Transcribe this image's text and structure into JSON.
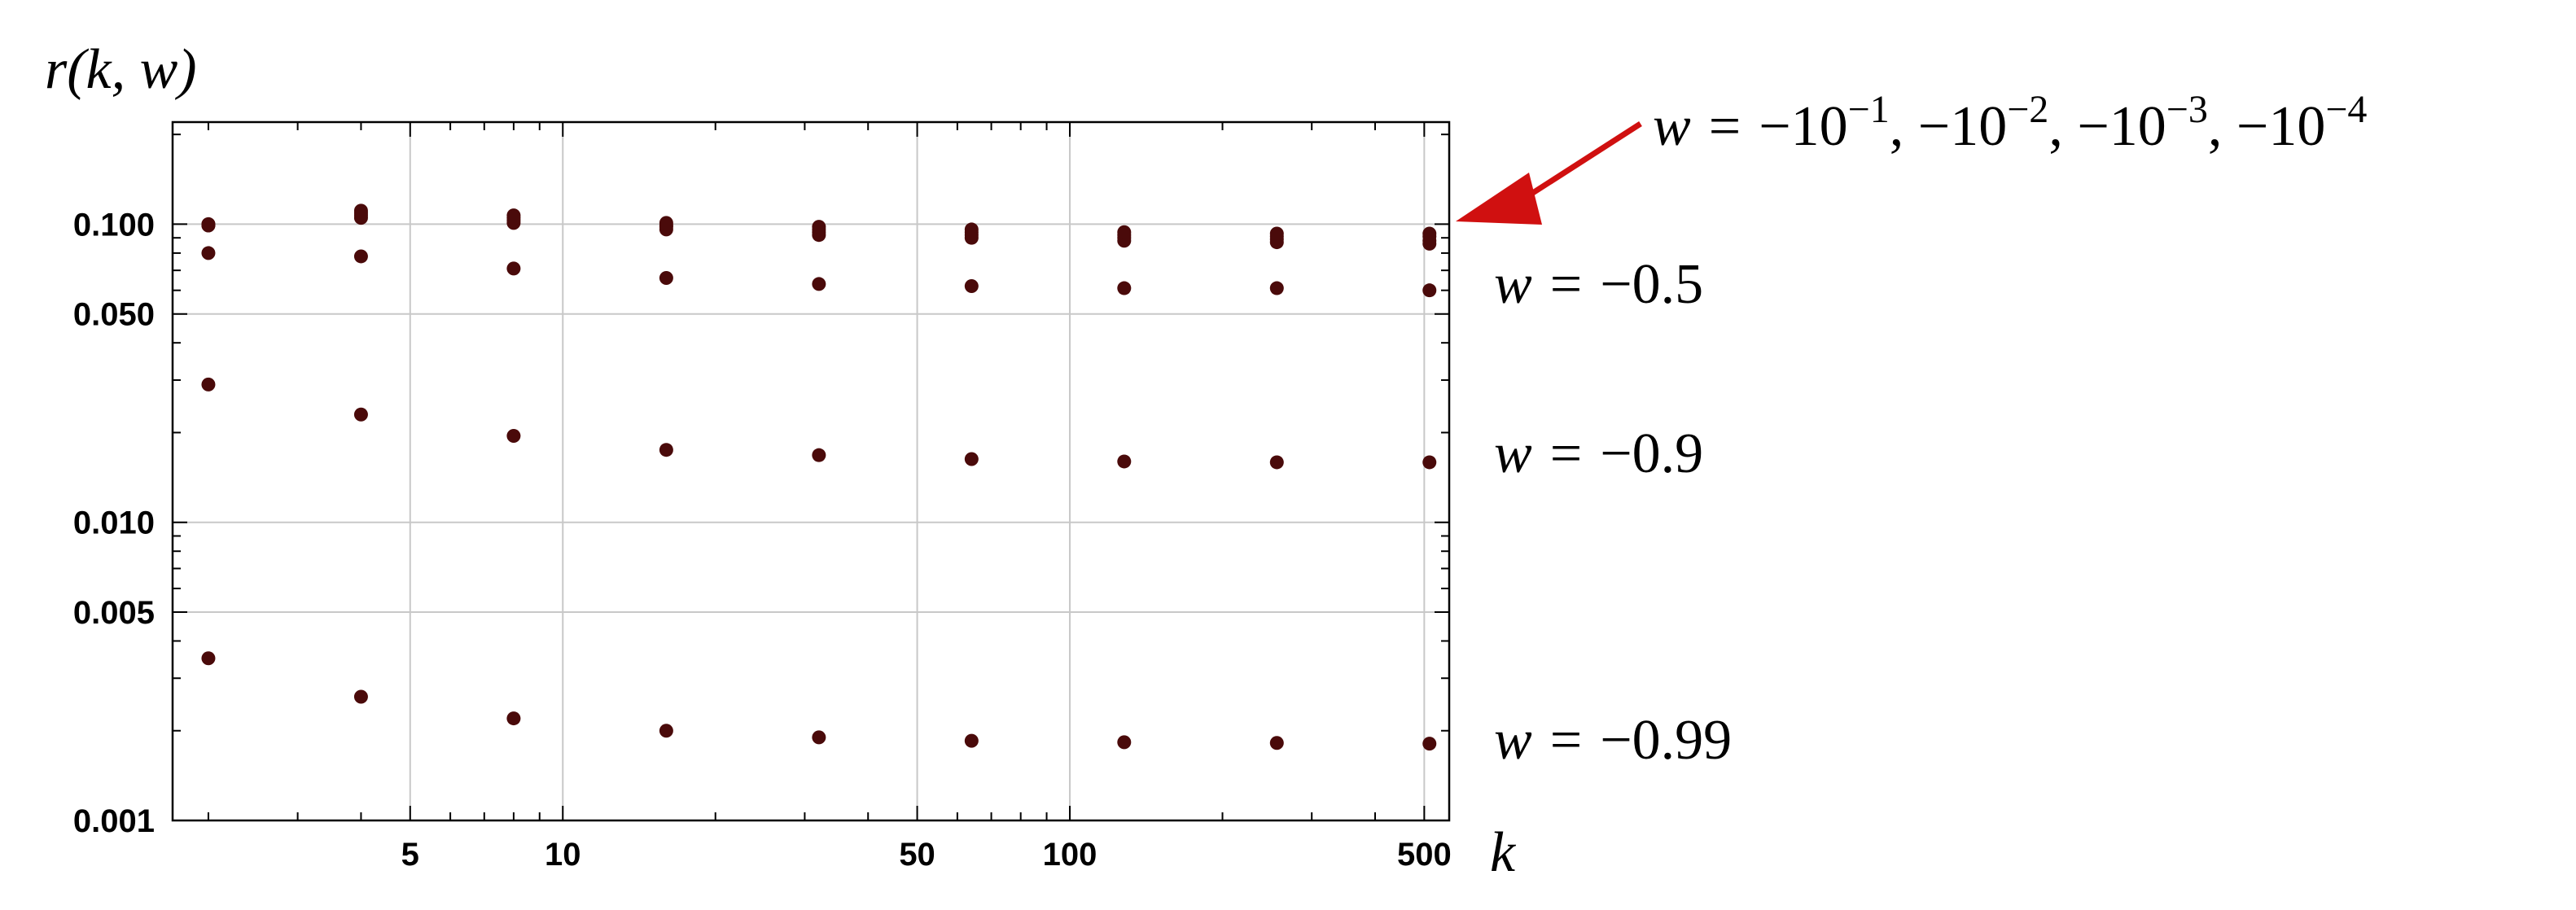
{
  "chart_data": {
    "type": "scatter",
    "ylabel": "r(k, w)",
    "xlabel": "k",
    "x_scale": "log",
    "y_scale": "log",
    "xlim": [
      1.7,
      560
    ],
    "ylim": [
      0.001,
      0.22
    ],
    "grid": true,
    "x_ticks": [
      {
        "value": 5,
        "label": "5"
      },
      {
        "value": 10,
        "label": "10"
      },
      {
        "value": 50,
        "label": "50"
      },
      {
        "value": 100,
        "label": "100"
      },
      {
        "value": 500,
        "label": "500"
      }
    ],
    "y_ticks": [
      {
        "value": 0.001,
        "label": "0.001"
      },
      {
        "value": 0.005,
        "label": "0.005"
      },
      {
        "value": 0.01,
        "label": "0.010"
      },
      {
        "value": 0.05,
        "label": "0.050"
      },
      {
        "value": 0.1,
        "label": "0.100"
      }
    ],
    "x": [
      2,
      4,
      8,
      16,
      32,
      64,
      128,
      256,
      512
    ],
    "series": [
      {
        "w": -0.0001,
        "values": [
          0.099,
          0.105,
          0.101,
          0.096,
          0.092,
          0.09,
          0.088,
          0.087,
          0.086
        ]
      },
      {
        "w": -0.001,
        "values": [
          0.099,
          0.107,
          0.103,
          0.098,
          0.094,
          0.092,
          0.09,
          0.089,
          0.088
        ]
      },
      {
        "w": -0.01,
        "values": [
          0.1,
          0.109,
          0.105,
          0.099,
          0.096,
          0.094,
          0.092,
          0.091,
          0.091
        ]
      },
      {
        "w": -0.1,
        "values": [
          0.1,
          0.111,
          0.107,
          0.101,
          0.098,
          0.096,
          0.094,
          0.093,
          0.093
        ]
      },
      {
        "w": -0.5,
        "values": [
          0.08,
          0.078,
          0.071,
          0.066,
          0.063,
          0.062,
          0.061,
          0.061,
          0.06
        ]
      },
      {
        "w": -0.9,
        "values": [
          0.029,
          0.023,
          0.0195,
          0.0175,
          0.0168,
          0.0163,
          0.016,
          0.0159,
          0.0159
        ]
      },
      {
        "w": -0.99,
        "values": [
          0.0035,
          0.0026,
          0.0022,
          0.002,
          0.0019,
          0.00185,
          0.00183,
          0.00182,
          0.00181
        ]
      }
    ],
    "point_color": "#4a0a0a",
    "arrow_color": "#d01010",
    "annotations": [
      {
        "id": "small",
        "var": "w",
        "eq": "=",
        "parts": [
          {
            "base": "−10",
            "exp": "−1"
          },
          {
            "base": ", −10",
            "exp": "−2"
          },
          {
            "base": ", −10",
            "exp": "−3"
          },
          {
            "base": ", −10",
            "exp": "−4"
          }
        ]
      },
      {
        "id": "half",
        "var": "w",
        "eq": "=",
        "value": "−0.5"
      },
      {
        "id": "nine",
        "var": "w",
        "eq": "=",
        "value": "−0.9"
      },
      {
        "id": "ninetynine",
        "var": "w",
        "eq": "=",
        "value": "−0.99"
      }
    ]
  }
}
